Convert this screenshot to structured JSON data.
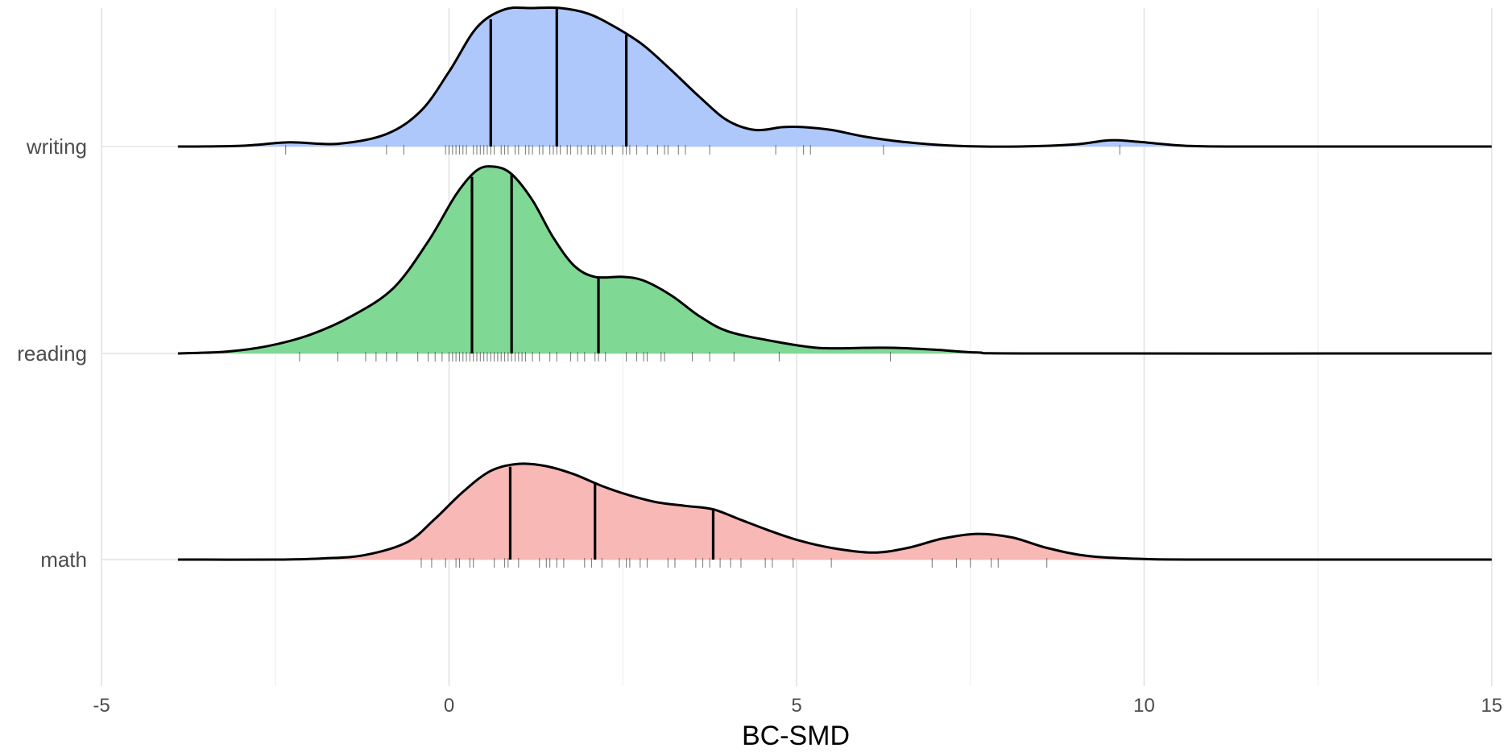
{
  "chart_data": {
    "type": "ridgeline",
    "xlabel": "BC-SMD",
    "xlim": [
      -5,
      15
    ],
    "x_ticks": [
      -5,
      0,
      5,
      10,
      15
    ],
    "x_tick_labels": [
      "-5",
      "0",
      "5",
      "10",
      "15"
    ],
    "grid": true,
    "legend": "none",
    "series": [
      {
        "name": "writing",
        "color": "#aec8fb",
        "density": [
          [
            -3.9,
            0.0
          ],
          [
            -3.0,
            0.005
          ],
          [
            -2.3,
            0.03
          ],
          [
            -1.6,
            0.02
          ],
          [
            -0.9,
            0.09
          ],
          [
            -0.4,
            0.26
          ],
          [
            0.0,
            0.54
          ],
          [
            0.4,
            0.86
          ],
          [
            0.8,
            0.99
          ],
          [
            1.2,
            1.0
          ],
          [
            1.6,
            1.0
          ],
          [
            2.0,
            0.96
          ],
          [
            2.4,
            0.86
          ],
          [
            2.8,
            0.73
          ],
          [
            3.2,
            0.55
          ],
          [
            3.6,
            0.36
          ],
          [
            4.0,
            0.19
          ],
          [
            4.4,
            0.12
          ],
          [
            4.8,
            0.14
          ],
          [
            5.1,
            0.14
          ],
          [
            5.5,
            0.12
          ],
          [
            6.0,
            0.07
          ],
          [
            6.6,
            0.03
          ],
          [
            7.3,
            0.005
          ],
          [
            8.2,
            0.0
          ],
          [
            9.0,
            0.015
          ],
          [
            9.5,
            0.045
          ],
          [
            9.9,
            0.035
          ],
          [
            10.6,
            0.005
          ],
          [
            11.5,
            0.0
          ],
          [
            15.0,
            0.0
          ]
        ],
        "quartiles": [
          0.6,
          1.55,
          2.55
        ],
        "rug": [
          -2.35,
          -0.9,
          -0.65,
          -0.05,
          0.0,
          0.05,
          0.1,
          0.15,
          0.2,
          0.25,
          0.35,
          0.4,
          0.45,
          0.5,
          0.55,
          0.6,
          0.65,
          0.75,
          0.8,
          0.85,
          0.95,
          1.0,
          1.1,
          1.15,
          1.2,
          1.3,
          1.35,
          1.45,
          1.5,
          1.55,
          1.6,
          1.7,
          1.75,
          1.85,
          1.9,
          2.0,
          2.05,
          2.1,
          2.2,
          2.25,
          2.35,
          2.5,
          2.55,
          2.6,
          2.7,
          2.85,
          3.0,
          3.1,
          3.15,
          3.3,
          3.4,
          3.75,
          4.7,
          5.1,
          5.2,
          6.25,
          9.65
        ]
      },
      {
        "name": "reading",
        "color": "#7fd894",
        "density": [
          [
            -3.9,
            0.0
          ],
          [
            -3.2,
            0.01
          ],
          [
            -2.6,
            0.04
          ],
          [
            -2.0,
            0.1
          ],
          [
            -1.4,
            0.2
          ],
          [
            -0.8,
            0.35
          ],
          [
            -0.3,
            0.6
          ],
          [
            0.1,
            0.85
          ],
          [
            0.4,
            0.98
          ],
          [
            0.65,
            1.0
          ],
          [
            0.9,
            0.96
          ],
          [
            1.2,
            0.82
          ],
          [
            1.5,
            0.62
          ],
          [
            1.8,
            0.47
          ],
          [
            2.1,
            0.41
          ],
          [
            2.5,
            0.41
          ],
          [
            2.8,
            0.39
          ],
          [
            3.2,
            0.31
          ],
          [
            3.6,
            0.2
          ],
          [
            4.0,
            0.12
          ],
          [
            4.6,
            0.07
          ],
          [
            5.3,
            0.03
          ],
          [
            6.0,
            0.03
          ],
          [
            6.4,
            0.03
          ],
          [
            7.0,
            0.02
          ],
          [
            7.6,
            0.005
          ],
          [
            8.5,
            0.0
          ],
          [
            15.0,
            0.0
          ]
        ],
        "quartiles": [
          0.33,
          0.9,
          2.15
        ],
        "rug": [
          -2.15,
          -1.6,
          -1.2,
          -1.05,
          -0.9,
          -0.75,
          -0.45,
          -0.3,
          -0.2,
          -0.1,
          0.0,
          0.05,
          0.1,
          0.15,
          0.2,
          0.25,
          0.3,
          0.35,
          0.4,
          0.45,
          0.5,
          0.55,
          0.6,
          0.65,
          0.7,
          0.75,
          0.8,
          0.85,
          0.9,
          0.95,
          1.0,
          1.05,
          1.1,
          1.2,
          1.3,
          1.45,
          1.55,
          1.75,
          1.85,
          1.95,
          2.1,
          2.15,
          2.25,
          2.55,
          2.7,
          2.8,
          2.85,
          3.05,
          3.1,
          3.5,
          3.75,
          4.1,
          4.75,
          6.35
        ]
      },
      {
        "name": "math",
        "color": "#f8b8b6",
        "density": [
          [
            -3.9,
            0.0
          ],
          [
            -2.5,
            0.0
          ],
          [
            -1.8,
            0.01
          ],
          [
            -1.2,
            0.04
          ],
          [
            -0.6,
            0.15
          ],
          [
            -0.2,
            0.35
          ],
          [
            0.2,
            0.58
          ],
          [
            0.6,
            0.76
          ],
          [
            1.0,
            0.82
          ],
          [
            1.4,
            0.8
          ],
          [
            1.8,
            0.73
          ],
          [
            2.2,
            0.63
          ],
          [
            2.6,
            0.55
          ],
          [
            3.0,
            0.49
          ],
          [
            3.4,
            0.46
          ],
          [
            3.8,
            0.43
          ],
          [
            4.2,
            0.34
          ],
          [
            4.6,
            0.25
          ],
          [
            5.0,
            0.17
          ],
          [
            5.5,
            0.1
          ],
          [
            6.1,
            0.06
          ],
          [
            6.6,
            0.1
          ],
          [
            7.1,
            0.18
          ],
          [
            7.6,
            0.22
          ],
          [
            8.1,
            0.19
          ],
          [
            8.6,
            0.1
          ],
          [
            9.2,
            0.03
          ],
          [
            10.0,
            0.005
          ],
          [
            11.0,
            0.0
          ],
          [
            15.0,
            0.0
          ]
        ],
        "quartiles": [
          0.88,
          2.1,
          3.8
        ],
        "rug": [
          -0.4,
          -0.25,
          -0.05,
          0.1,
          0.15,
          0.3,
          0.35,
          0.65,
          0.8,
          0.85,
          1.0,
          1.3,
          1.4,
          1.45,
          1.55,
          1.65,
          1.95,
          2.05,
          2.2,
          2.45,
          2.55,
          2.6,
          2.75,
          2.85,
          3.15,
          3.25,
          3.55,
          3.65,
          3.75,
          3.9,
          4.05,
          4.2,
          4.55,
          4.65,
          4.95,
          5.5,
          6.95,
          7.3,
          7.5,
          7.8,
          7.9,
          8.6
        ]
      }
    ]
  }
}
